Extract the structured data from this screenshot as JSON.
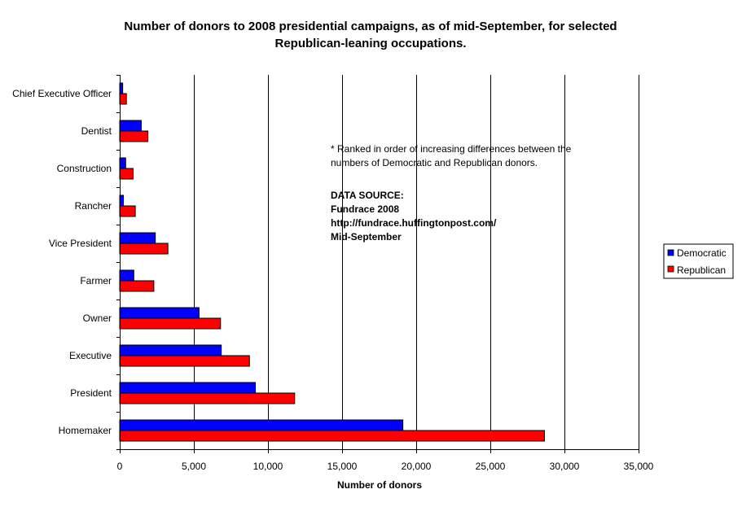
{
  "chart_data": {
    "type": "bar",
    "orientation": "horizontal",
    "title_lines": [
      "Number of donors to 2008 presidential campaigns, as of mid-September, for selected",
      "Republican-leaning occupations."
    ],
    "xlabel": "Number of donors",
    "ylabel": "",
    "xlim": [
      0,
      35000
    ],
    "xticks": [
      0,
      5000,
      10000,
      15000,
      20000,
      25000,
      30000,
      35000
    ],
    "xtick_labels": [
      "0",
      "5,000",
      "10,000",
      "15,000",
      "20,000",
      "25,000",
      "30,000",
      "35,000"
    ],
    "grid": "vertical gridlines",
    "categories": [
      "Chief Executive Officer",
      "Dentist",
      "Construction",
      "Rancher",
      "Vice President",
      "Farmer",
      "Owner",
      "Executive",
      "President",
      "Homemaker"
    ],
    "series": [
      {
        "name": "Democratic",
        "color": "#0000ff",
        "values": [
          200,
          1450,
          400,
          250,
          2400,
          950,
          5350,
          6850,
          9150,
          19100
        ]
      },
      {
        "name": "Republican",
        "color": "#ff0000",
        "values": [
          450,
          1900,
          900,
          1050,
          3250,
          2300,
          6800,
          8750,
          11800,
          28650
        ]
      }
    ],
    "legend_position": "right",
    "annotation": {
      "note_lines": [
        "* Ranked in order of increasing differences between the",
        "numbers of Democratic and Republican donors."
      ],
      "source_lines": [
        "DATA SOURCE:",
        "Fundrace 2008",
        "http://fundrace.huffingtonpost.com/",
        "Mid-September"
      ]
    }
  }
}
